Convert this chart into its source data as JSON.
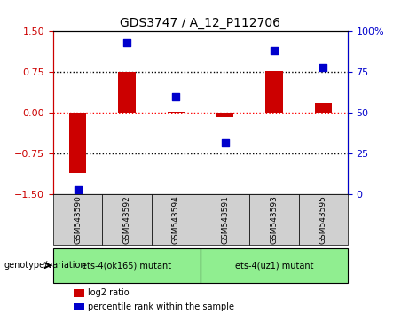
{
  "title": "GDS3747 / A_12_P112706",
  "samples": [
    "GSM543590",
    "GSM543592",
    "GSM543594",
    "GSM543591",
    "GSM543593",
    "GSM543595"
  ],
  "log2_ratio": [
    -1.1,
    0.75,
    0.02,
    -0.07,
    0.77,
    0.18
  ],
  "percentile_rank": [
    3,
    93,
    60,
    32,
    88,
    78
  ],
  "bar_color": "#cc0000",
  "dot_color": "#0000cc",
  "ylim_left": [
    -1.5,
    1.5
  ],
  "ylim_right": [
    0,
    100
  ],
  "yticks_left": [
    -1.5,
    -0.75,
    0,
    0.75,
    1.5
  ],
  "yticks_right": [
    0,
    25,
    50,
    75,
    100
  ],
  "hlines": [
    0.75,
    0,
    -0.75
  ],
  "hline_colors": [
    "black",
    "red",
    "black"
  ],
  "hline_styles": [
    "dotted",
    "dotted",
    "dotted"
  ],
  "groups": [
    {
      "label": "ets-4(ok165) mutant",
      "samples": [
        "GSM543590",
        "GSM543592",
        "GSM543594"
      ],
      "color": "#90ee90"
    },
    {
      "label": "ets-4(uz1) mutant",
      "samples": [
        "GSM543591",
        "GSM543593",
        "GSM543595"
      ],
      "color": "#90ee90"
    }
  ],
  "genotype_label": "genotype/variation",
  "legend_items": [
    {
      "color": "#cc0000",
      "label": "log2 ratio"
    },
    {
      "color": "#0000cc",
      "label": "percentile rank within the sample"
    }
  ],
  "bar_width": 0.35,
  "dot_size": 40,
  "group_box_color": "#c0c0c0",
  "group_label_color": "black",
  "background_color": "white",
  "plot_bg_color": "white",
  "border_color": "black"
}
